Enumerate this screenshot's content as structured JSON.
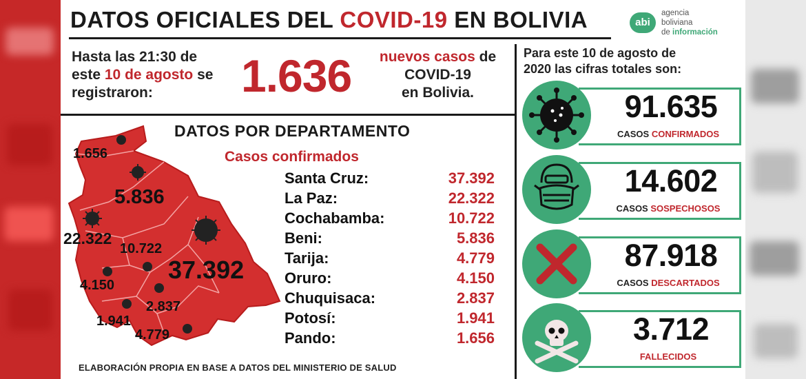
{
  "header": {
    "title_part1": "DATOS OFICIALES DEL ",
    "title_highlight": "COVID-19",
    "title_part2": " EN BOLIVIA"
  },
  "logo": {
    "badge": "abi",
    "line1": "agencia",
    "line2": "boliviana",
    "line3_prefix": "de ",
    "line3_highlight": "información"
  },
  "new_cases": {
    "intro_line1": "Hasta las 21:30 de",
    "intro_line2_prefix": "este ",
    "intro_line2_date": "10 de agosto",
    "intro_line2_suffix": " se",
    "intro_line3": "registraron:",
    "count": "1.636",
    "label_red": "nuevos casos",
    "label_line1_suffix": " de",
    "label_line2": "COVID-19",
    "label_line3": "en Bolivia."
  },
  "departments": {
    "title": "DATOS POR DEPARTAMENTO",
    "subtitle": "Casos confirmados",
    "rows": [
      {
        "name": "Santa Cruz:",
        "value": "37.392"
      },
      {
        "name": "La Paz:",
        "value": "22.322"
      },
      {
        "name": "Cochabamba:",
        "value": "10.722"
      },
      {
        "name": "Beni:",
        "value": "5.836"
      },
      {
        "name": "Tarija:",
        "value": "4.779"
      },
      {
        "name": "Oruro:",
        "value": "4.150"
      },
      {
        "name": "Chuquisaca:",
        "value": "2.837"
      },
      {
        "name": "Potosí:",
        "value": "1.941"
      },
      {
        "name": "Pando:",
        "value": "1.656"
      }
    ],
    "map_labels": {
      "pando": "1.656",
      "beni": "5.836",
      "la_paz": "22.322",
      "cochabamba": "10.722",
      "santa_cruz": "37.392",
      "oruro": "4.150",
      "chuquisaca": "2.837",
      "potosi": "1.941",
      "tarija": "4.779"
    }
  },
  "totals": {
    "intro_line1": "Para este 10 de agosto de",
    "intro_line2": "2020 las cifras totales son:",
    "cards": [
      {
        "number": "91.635",
        "label_prefix": "CASOS ",
        "label_red": "CONFIRMADOS",
        "icon": "virus-icon"
      },
      {
        "number": "14.602",
        "label_prefix": "CASOS ",
        "label_red": "SOSPECHOSOS",
        "icon": "face-mask-icon"
      },
      {
        "number": "87.918",
        "label_prefix": "CASOS ",
        "label_red": "DESCARTADOS",
        "icon": "red-x-icon"
      },
      {
        "number": "3.712",
        "label_prefix": "",
        "label_red": "FALLECIDOS",
        "icon": "skull-crossbones-icon"
      }
    ]
  },
  "footer": {
    "text": "ELABORACIÓN PROPIA EN BASE A DATOS DEL MINISTERIO DE SALUD"
  },
  "colors": {
    "accent_red": "#c0272d",
    "accent_green": "#3fa877",
    "map_red": "#d32f2f"
  }
}
